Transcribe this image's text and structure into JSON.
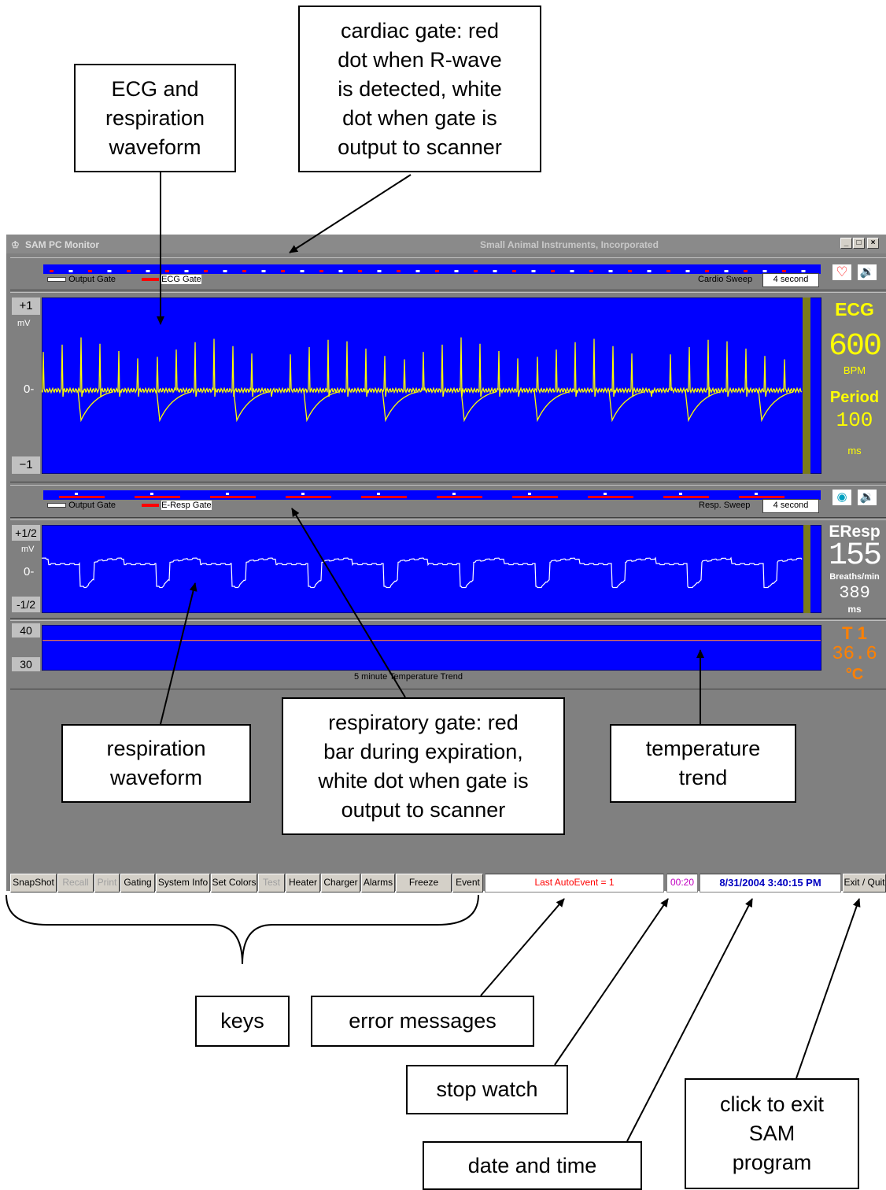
{
  "window": {
    "title": "SAM PC Monitor",
    "company": "Small Animal Instruments, Incorporated",
    "controls": [
      "_",
      "□",
      "×"
    ]
  },
  "cardiac_gate": {
    "output_label": "Output Gate",
    "gate_label": "ECG Gate",
    "sweep_label": "Cardio Sweep",
    "sweep_value": "4 second",
    "icons": [
      "heart-icon",
      "speaker-icon"
    ]
  },
  "ecg": {
    "scale_top": "+1",
    "unit": "mV",
    "scale_mid": "0-",
    "scale_bottom": "−1",
    "title": "ECG",
    "rate": "600",
    "rate_unit": "BPM",
    "period_label": "Period",
    "period": "100",
    "period_unit": "ms",
    "trace_color": "#ffff00"
  },
  "resp_gate": {
    "output_label": "Output Gate",
    "gate_label": "E-Resp Gate",
    "sweep_label": "Resp. Sweep",
    "sweep_value": "4 second",
    "icons": [
      "lungs-icon",
      "speaker-icon"
    ]
  },
  "resp": {
    "scale_top": "+1/2",
    "unit": "mV",
    "scale_mid": "0-",
    "scale_bottom": "-1/2",
    "title": "EResp",
    "rate": "155",
    "rate_unit": "Breaths/min",
    "period": "389",
    "period_unit": "ms"
  },
  "temperature": {
    "scale_top": "40",
    "scale_bottom": "30",
    "caption": "5 minute Temperature Trend",
    "label": "T 1",
    "value": "36.6",
    "unit": "°C",
    "color": "#ff8000"
  },
  "toolbar": {
    "buttons": [
      "SnapShot",
      "Recall",
      "Print",
      "Gating",
      "System Info",
      "Set Colors",
      "Test",
      "Heater",
      "Charger",
      "Alarms",
      "Freeze",
      "Event"
    ],
    "status_message": "Last AutoEvent = 1",
    "stopwatch": "00:20",
    "datetime": "8/31/2004 3:40:15 PM",
    "exit_label": "Exit / Quit"
  },
  "callouts": {
    "ecg_resp_waveform": "ECG and\nrespiration\nwaveform",
    "cardiac_gate": "cardiac gate: red\ndot when R-wave\nis detected, white\ndot when gate is\noutput to scanner",
    "respiration_waveform": "respiration\nwaveform",
    "respiratory_gate": "respiratory gate: red\nbar during expiration,\nwhite dot when gate is\noutput to scanner",
    "temperature_trend": "temperature\ntrend",
    "keys": "keys",
    "error_messages": "error messages",
    "stop_watch": "stop watch",
    "date_time": "date and time",
    "exit_program": "click to exit\nSAM\nprogram"
  }
}
